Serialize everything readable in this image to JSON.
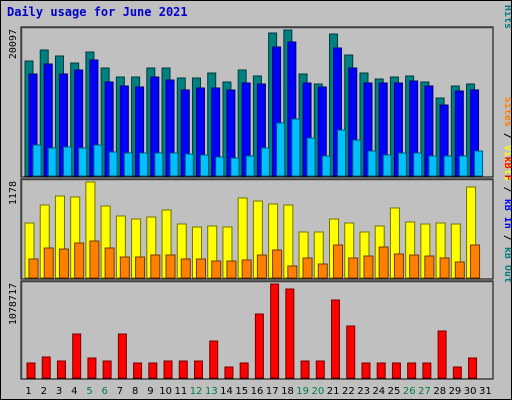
{
  "title": "Daily usage for June 2021",
  "colors": {
    "background": "#c0c0c0",
    "title": "#0000cc",
    "hits": "#008080",
    "files": "#0000ff",
    "pages": "#00c0ff",
    "visits": "#ffff00",
    "sites": "#ff8000",
    "kbytes": "#ff0000",
    "weekend_label": "#008040",
    "weekday_label": "#000000"
  },
  "chart_data": [
    {
      "type": "bar",
      "panel": "top",
      "max_label": "20097",
      "right_label_parts": [
        {
          "text": "Pages",
          "color": "#00c0ff"
        },
        {
          "text": " / ",
          "color": "#000000"
        },
        {
          "text": "Files",
          "color": "#0000ff"
        },
        {
          "text": " / ",
          "color": "#000000"
        },
        {
          "text": "Hits",
          "color": "#008080"
        }
      ],
      "ylim": [
        0,
        20097
      ],
      "x": [
        1,
        2,
        3,
        4,
        5,
        6,
        7,
        8,
        9,
        10,
        11,
        12,
        13,
        14,
        15,
        16,
        17,
        18,
        19,
        20,
        21,
        22,
        23,
        24,
        25,
        26,
        27,
        28,
        29,
        30,
        31
      ],
      "series": [
        {
          "name": "Hits",
          "values": [
            15800,
            17300,
            16500,
            15600,
            17100,
            14800,
            13600,
            13600,
            14800,
            14900,
            13500,
            13500,
            14200,
            13000,
            14600,
            13700,
            19700,
            20100,
            14000,
            12600,
            19600,
            16700,
            14200,
            13300,
            13600,
            13700,
            13000,
            10800,
            12400,
            12600,
            null
          ]
        },
        {
          "name": "Files",
          "values": [
            14000,
            15400,
            14100,
            14600,
            15900,
            13000,
            12400,
            12300,
            13600,
            13200,
            11900,
            12100,
            12100,
            11900,
            12800,
            12700,
            17700,
            18400,
            12800,
            12300,
            17600,
            14800,
            12800,
            12800,
            12800,
            13100,
            12400,
            9800,
            11700,
            11900,
            null
          ]
        },
        {
          "name": "Pages",
          "values": [
            4200,
            3900,
            4000,
            3800,
            4200,
            3300,
            3100,
            3100,
            3200,
            3200,
            3000,
            2900,
            2600,
            2500,
            2800,
            3800,
            7300,
            7900,
            5200,
            2700,
            6300,
            5000,
            3500,
            2900,
            3200,
            3200,
            2800,
            2700,
            2800,
            3500,
            null
          ]
        }
      ]
    },
    {
      "type": "bar",
      "panel": "middle",
      "max_label": "1178",
      "right_label_parts": [
        {
          "text": "Sites",
          "color": "#ff8000"
        },
        {
          "text": " / ",
          "color": "#000000"
        },
        {
          "text": "Visits",
          "color": "#ffff00"
        }
      ],
      "ylim": [
        0,
        1178
      ],
      "x": [
        1,
        2,
        3,
        4,
        5,
        6,
        7,
        8,
        9,
        10,
        11,
        12,
        13,
        14,
        15,
        16,
        17,
        18,
        19,
        20,
        21,
        22,
        23,
        24,
        25,
        26,
        27,
        28,
        29,
        30,
        31
      ],
      "series": [
        {
          "name": "Visits",
          "values": [
            680,
            900,
            1010,
            990,
            1178,
            880,
            760,
            720,
            750,
            830,
            660,
            620,
            640,
            630,
            980,
            950,
            910,
            890,
            570,
            560,
            720,
            680,
            570,
            640,
            860,
            690,
            660,
            680,
            660,
            1120,
            null
          ]
        },
        {
          "name": "Sites",
          "values": [
            230,
            370,
            360,
            430,
            460,
            370,
            260,
            260,
            280,
            280,
            230,
            230,
            210,
            210,
            220,
            280,
            340,
            150,
            250,
            170,
            400,
            250,
            270,
            380,
            290,
            280,
            270,
            240,
            200,
            400,
            null
          ]
        }
      ]
    },
    {
      "type": "bar",
      "panel": "bottom",
      "max_label": "1078717",
      "right_label_parts": [
        {
          "text": "kB F",
          "color": "#ff0000"
        },
        {
          "text": " / ",
          "color": "#000000"
        },
        {
          "text": "kB In",
          "color": "#0000ff"
        },
        {
          "text": " / ",
          "color": "#000000"
        },
        {
          "text": "kB Out",
          "color": "#008080"
        }
      ],
      "ylim": [
        0,
        1078717
      ],
      "x": [
        1,
        2,
        3,
        4,
        5,
        6,
        7,
        8,
        9,
        10,
        11,
        12,
        13,
        14,
        15,
        16,
        17,
        18,
        19,
        20,
        21,
        22,
        23,
        24,
        25,
        26,
        27,
        28,
        29,
        30,
        31
      ],
      "series": [
        {
          "name": "kB F",
          "values": [
            175000,
            246000,
            193000,
            501000,
            229000,
            193000,
            500000,
            175000,
            175000,
            193000,
            193000,
            193000,
            420000,
            131000,
            175000,
            729000,
            1078717,
            1017000,
            193000,
            193000,
            893000,
            597000,
            175000,
            175000,
            175000,
            175000,
            175000,
            542000,
            131000,
            229000,
            null
          ]
        }
      ]
    }
  ]
}
